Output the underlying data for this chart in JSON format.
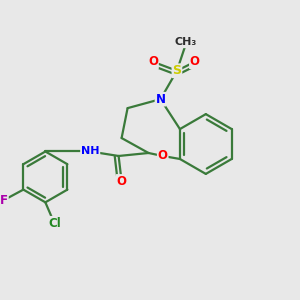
{
  "background_color": "#e8e8e8",
  "bond_color": "#3a7a3a",
  "atom_colors": {
    "N": "#0000ff",
    "O": "#ff0000",
    "S": "#cccc00",
    "Cl": "#228822",
    "F": "#aa00aa",
    "C": "#2d2d2d"
  },
  "figsize": [
    3.0,
    3.0
  ],
  "dpi": 100,
  "bond_lw": 1.6,
  "font_size": 8.5
}
